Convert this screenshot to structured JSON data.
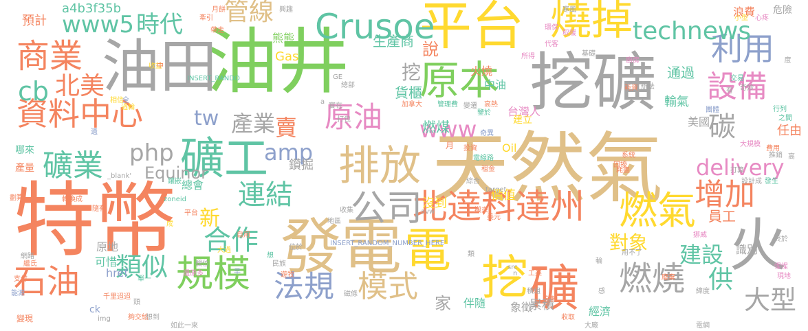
{
  "palette": {
    "orange": "#f4845f",
    "green": "#7fcf5e",
    "gray": "#a6a6a6",
    "tan": "#e0c088",
    "yellow": "#ffd92f",
    "teal": "#5fc4a4",
    "blue": "#8da0cb",
    "pink": "#e78ac3"
  },
  "words": [
    {
      "text": "特幣",
      "color": "orange"
    },
    {
      "text": "天然氣",
      "color": "tan"
    },
    {
      "text": "油井",
      "color": "green"
    },
    {
      "text": "挖礦",
      "color": "gray"
    },
    {
      "text": "發電",
      "color": "tan"
    },
    {
      "text": "油田",
      "color": "gray"
    },
    {
      "text": "平台",
      "color": "yellow"
    },
    {
      "text": "排放",
      "color": "tan"
    },
    {
      "text": "燒掉",
      "color": "yellow"
    },
    {
      "text": "礦工",
      "color": "teal"
    },
    {
      "text": "火",
      "color": "gray"
    },
    {
      "text": "Crusoe",
      "color": "teal"
    },
    {
      "text": "原本",
      "color": "green"
    },
    {
      "text": "電",
      "color": "yellow"
    },
    {
      "text": "挖",
      "color": "yellow"
    },
    {
      "text": "礦",
      "color": "orange"
    },
    {
      "text": "燃氣",
      "color": "yellow"
    },
    {
      "text": "北達科達州",
      "color": "orange"
    },
    {
      "text": "商業",
      "color": "orange"
    },
    {
      "text": "資料中心",
      "color": "orange"
    },
    {
      "text": "石油",
      "color": "orange"
    },
    {
      "text": "規模",
      "color": "green"
    },
    {
      "text": "燃燒",
      "color": "gray"
    },
    {
      "text": "增加",
      "color": "orange"
    },
    {
      "text": "利用",
      "color": "blue"
    },
    {
      "text": "設備",
      "color": "pink"
    },
    {
      "text": "公司",
      "color": "gray"
    },
    {
      "text": "連結",
      "color": "teal"
    },
    {
      "text": "法規",
      "color": "blue"
    },
    {
      "text": "模式",
      "color": "tan"
    },
    {
      "text": "礦業",
      "color": "teal"
    },
    {
      "text": "原油",
      "color": "pink"
    },
    {
      "text": "technews",
      "color": "teal"
    },
    {
      "text": "www5",
      "color": "teal"
    },
    {
      "text": "時代",
      "color": "teal"
    },
    {
      "text": "管線",
      "color": "tan"
    },
    {
      "text": "合作",
      "color": "teal"
    },
    {
      "text": "delivery",
      "color": "pink"
    },
    {
      "text": "大型",
      "color": "gray"
    },
    {
      "text": "cb",
      "color": "teal"
    },
    {
      "text": "北美",
      "color": "orange"
    },
    {
      "text": "碳",
      "color": "gray"
    },
    {
      "text": "www",
      "color": "pink"
    },
    {
      "text": "類似",
      "color": "teal"
    },
    {
      "text": "建設",
      "color": "teal"
    },
    {
      "text": "對象",
      "color": "yellow"
    },
    {
      "text": "產業",
      "color": "gray"
    },
    {
      "text": "amp",
      "color": "blue"
    },
    {
      "text": "php",
      "color": "gray"
    },
    {
      "text": "tw",
      "color": "blue"
    },
    {
      "text": "賣",
      "color": "orange"
    },
    {
      "text": "供",
      "color": "teal"
    },
    {
      "text": "新",
      "color": "yellow"
    },
    {
      "text": "說",
      "color": "orange"
    },
    {
      "text": "挖",
      "color": "gray"
    },
    {
      "text": "家",
      "color": "gray"
    },
    {
      "text": "Equinor",
      "color": "gray"
    },
    {
      "text": "生產商",
      "color": "teal"
    },
    {
      "text": "貨櫃",
      "color": "teal"
    },
    {
      "text": "燃煤",
      "color": "teal"
    },
    {
      "text": "台灣人",
      "color": "pink"
    },
    {
      "text": "Oil",
      "color": "yellow"
    },
    {
      "text": "通過",
      "color": "teal"
    },
    {
      "text": "員工",
      "color": "orange"
    },
    {
      "text": "a4b3f35b",
      "color": "teal"
    },
    {
      "text": "熊熊",
      "color": "green"
    },
    {
      "text": "Gas",
      "color": "yellow"
    },
    {
      "text": "預計",
      "color": "orange"
    },
    {
      "text": "浪費",
      "color": "orange"
    },
    {
      "text": "危險",
      "color": "gray"
    },
    {
      "text": "任由",
      "color": "orange"
    },
    {
      "text": "識別",
      "color": "gray"
    },
    {
      "text": "美國",
      "color": "gray"
    },
    {
      "text": "輸氣",
      "color": "teal"
    },
    {
      "text": "價值",
      "color": "yellow"
    },
    {
      "text": "鑽掘",
      "color": "gray"
    },
    {
      "text": "沒到",
      "color": "yellow"
    },
    {
      "text": "累積",
      "color": "gray"
    },
    {
      "text": "伴隨",
      "color": "teal"
    },
    {
      "text": "象徵",
      "color": "gray"
    },
    {
      "text": "經濟",
      "color": "teal"
    },
    {
      "text": "總會",
      "color": "teal"
    },
    {
      "text": "可惜",
      "color": "teal"
    },
    {
      "text": "原地",
      "color": "gray"
    },
    {
      "text": "href",
      "color": "blue"
    },
    {
      "text": "ck",
      "color": "blue"
    },
    {
      "text": "產量",
      "color": "orange"
    },
    {
      "text": "哪來",
      "color": "teal"
    },
    {
      "text": "火燒",
      "color": "orange"
    },
    {
      "text": "中油",
      "color": "teal"
    },
    {
      "text": "建立",
      "color": "yellow"
    },
    {
      "text": "月",
      "color": "orange"
    },
    {
      "text": "INSERT_RANDOM_NUMBER_HERE'",
      "color": "blue"
    },
    {
      "text": "INSERT_RANDO",
      "color": "teal"
    },
    {
      "text": "千里迢迢",
      "color": "orange"
    },
    {
      "text": "_blank'",
      "color": "gray"
    },
    {
      "text": "zoneid",
      "color": "teal"
    },
    {
      "text": "target",
      "color": "gray"
    },
    {
      "text": "src",
      "color": "gray"
    },
    {
      "text": "img",
      "color": "gray"
    },
    {
      "text": "如此一來",
      "color": "gray"
    },
    {
      "text": "變現",
      "color": "orange"
    },
    {
      "text": "能源",
      "color": "blue"
    },
    {
      "text": "支付",
      "color": "orange"
    },
    {
      "text": "網路",
      "color": "gray"
    },
    {
      "text": "繼氏",
      "color": "orange"
    },
    {
      "text": "劃算",
      "color": "orange"
    },
    {
      "text": "轉換成",
      "color": "orange"
    },
    {
      "text": "隨有",
      "color": "orange"
    },
    {
      "text": "收集",
      "color": "gray"
    },
    {
      "text": "地區",
      "color": "gray"
    },
    {
      "text": "美元",
      "color": "orange"
    },
    {
      "text": "綜合",
      "color": "gray"
    },
    {
      "text": "租金",
      "color": "orange"
    },
    {
      "text": "電線路",
      "color": "teal"
    },
    {
      "text": "投資",
      "color": "orange"
    },
    {
      "text": "奇異",
      "color": "blue"
    },
    {
      "text": "團體",
      "color": "blue"
    },
    {
      "text": "困擾",
      "color": "orange"
    },
    {
      "text": "系統",
      "color": "orange"
    },
    {
      "text": "耗盡",
      "color": "orange"
    },
    {
      "text": "設計成",
      "color": "gray"
    },
    {
      "text": "打算",
      "color": "gray"
    },
    {
      "text": "發生",
      "color": "teal"
    },
    {
      "text": "推銷",
      "color": "gray"
    },
    {
      "text": "行列",
      "color": "teal"
    },
    {
      "text": "費用",
      "color": "orange"
    },
    {
      "text": "之間",
      "color": "teal"
    },
    {
      "text": "大規模",
      "color": "pink"
    },
    {
      "text": "奇妙",
      "color": "gray"
    },
    {
      "text": "交易",
      "color": "teal"
    },
    {
      "text": "小型",
      "color": "yellow"
    },
    {
      "text": "心疼",
      "color": "pink"
    },
    {
      "text": "寒風",
      "color": "gray"
    },
    {
      "text": "環保",
      "color": "pink"
    },
    {
      "text": "取暖",
      "color": "pink"
    },
    {
      "text": "代客",
      "color": "pink"
    },
    {
      "text": "基礎",
      "color": "gray"
    },
    {
      "text": "所得",
      "color": "pink"
    },
    {
      "text": "廚房",
      "color": "pink"
    },
    {
      "text": "辦法",
      "color": "gray"
    },
    {
      "text": "耗資",
      "color": "orange"
    },
    {
      "text": "收益",
      "color": "yellow"
    },
    {
      "text": "月餅",
      "color": "orange"
    },
    {
      "text": "牽引",
      "color": "orange"
    },
    {
      "text": "帶走",
      "color": "orange"
    },
    {
      "text": "興趣",
      "color": "gray"
    },
    {
      "text": "總部",
      "color": "gray"
    },
    {
      "text": "實在",
      "color": "gray"
    },
    {
      "text": "打包",
      "color": "gray"
    },
    {
      "text": "加拿大",
      "color": "orange"
    },
    {
      "text": "管理費",
      "color": "teal"
    },
    {
      "text": "鑒於",
      "color": "teal"
    },
    {
      "text": "高熱",
      "color": "orange"
    },
    {
      "text": "變遷",
      "color": "gray"
    },
    {
      "text": "相信",
      "color": "yellow"
    },
    {
      "text": "過輪",
      "color": "yellow"
    },
    {
      "text": "鑲嵌",
      "color": "teal"
    },
    {
      "text": "平台",
      "color": "orange"
    },
    {
      "text": "自用",
      "color": "orange"
    },
    {
      "text": "位於",
      "color": "gray"
    },
    {
      "text": "民族",
      "color": "gray"
    },
    {
      "text": "遊牧",
      "color": "orange"
    },
    {
      "text": "磁條",
      "color": "gray"
    },
    {
      "text": "單一",
      "color": "teal"
    },
    {
      "text": "還原多",
      "color": "pink"
    },
    {
      "text": "工業",
      "color": "orange"
    },
    {
      "text": "廢棄",
      "color": "orange"
    },
    {
      "text": "用不了",
      "color": "gray"
    },
    {
      "text": "挪威",
      "color": "pink"
    },
    {
      "text": "終於",
      "color": "gray"
    },
    {
      "text": "惺惺",
      "color": "pink"
    },
    {
      "text": "現地",
      "color": "pink"
    },
    {
      "text": "緯度",
      "color": "gray"
    },
    {
      "text": "電網",
      "color": "gray"
    },
    {
      "text": "大廠",
      "color": "gray"
    },
    {
      "text": "積組",
      "color": "gray"
    },
    {
      "text": "全數",
      "color": "orange"
    },
    {
      "text": "收取",
      "color": "orange"
    },
    {
      "text": "夠交給",
      "color": "orange"
    },
    {
      "text": "想到",
      "color": "gray"
    },
    {
      "text": "大過",
      "color": "yellow"
    },
    {
      "text": "欄位",
      "color": "gray"
    },
    {
      "text": "想",
      "color": "teal"
    },
    {
      "text": "早",
      "color": "blue"
    },
    {
      "text": "遺",
      "color": "blue"
    },
    {
      "text": "成",
      "color": "yellow"
    },
    {
      "text": "中",
      "color": "orange"
    },
    {
      "text": "GE",
      "color": "gray"
    },
    {
      "text": "avw",
      "color": "gray"
    },
    {
      "text": "n",
      "color": "gray"
    },
    {
      "text": "a",
      "color": "gray"
    },
    {
      "text": "全",
      "color": "blue"
    },
    {
      "text": "頭",
      "color": "gray"
    },
    {
      "text": "度",
      "color": "gray"
    },
    {
      "text": "高",
      "color": "gray"
    },
    {
      "text": "有",
      "color": "gray"
    },
    {
      "text": "輪",
      "color": "gray"
    },
    {
      "text": "類",
      "color": "gray"
    },
    {
      "text": "感",
      "color": "gray"
    },
    {
      "text": "搬來",
      "color": "orange"
    }
  ]
}
